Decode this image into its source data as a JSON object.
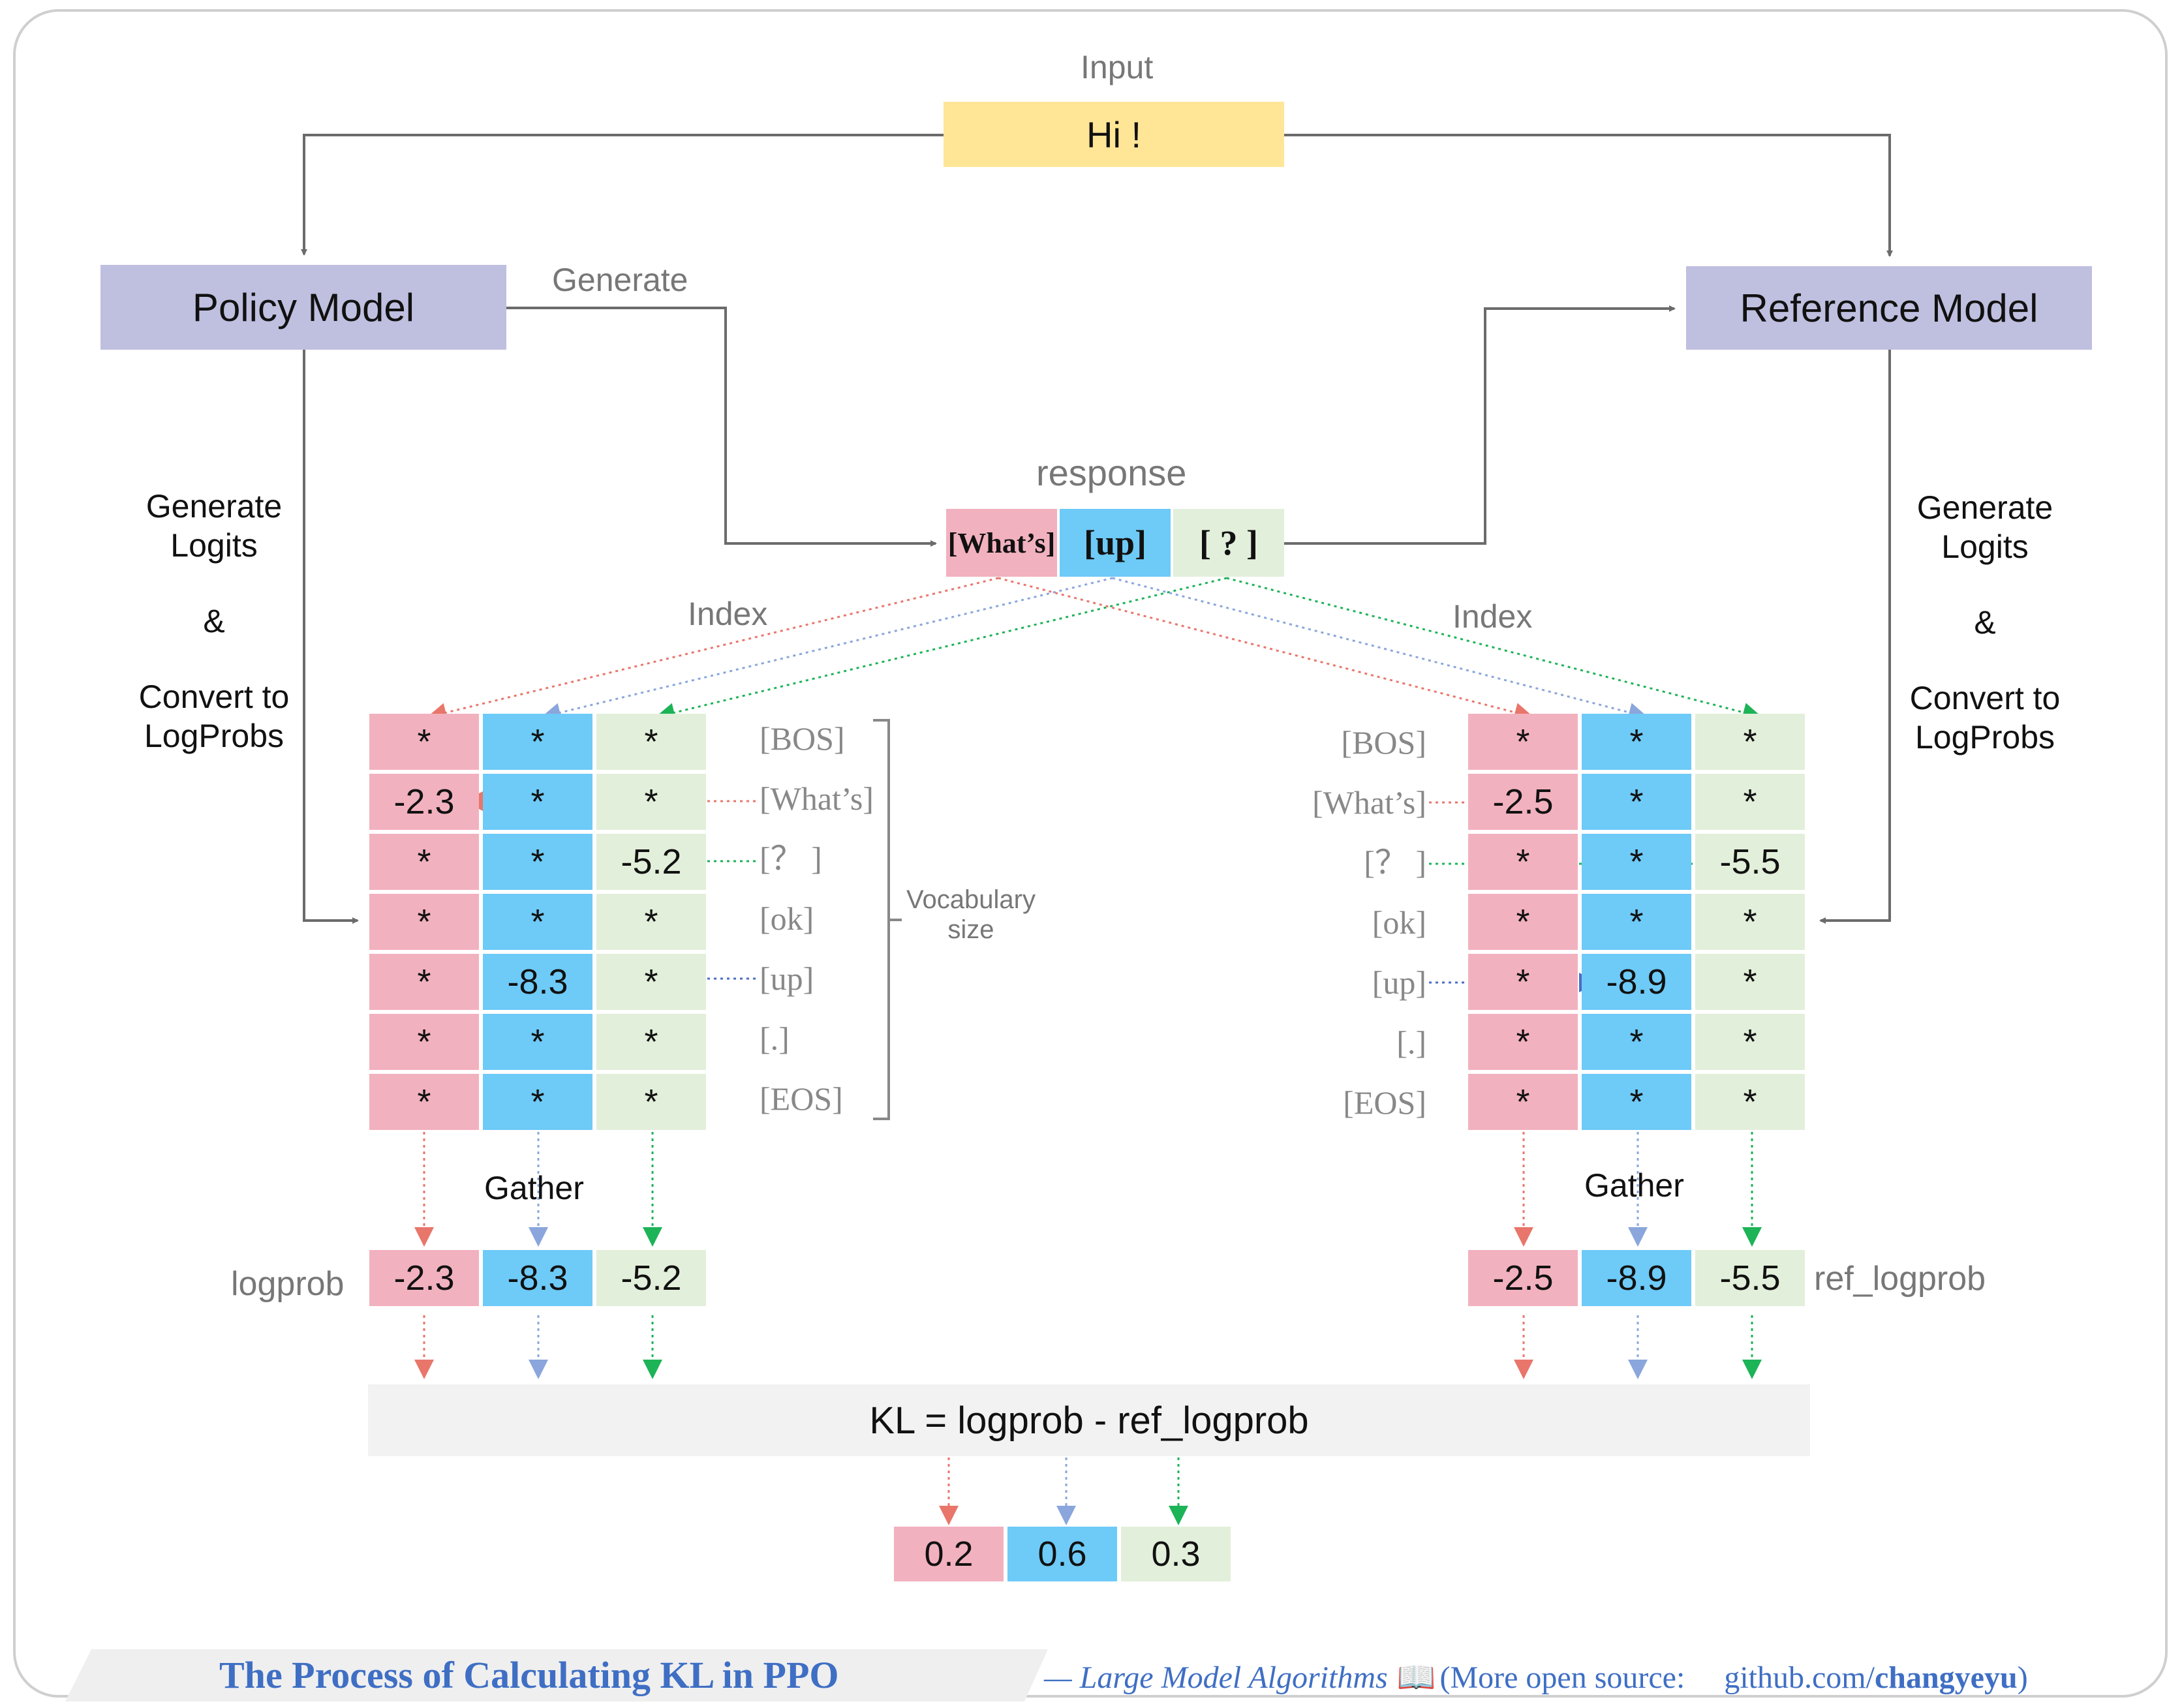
{
  "input": {
    "label": "Input",
    "text": "Hi !"
  },
  "policy_model": "Policy Model",
  "reference_model": "Reference Model",
  "generate_label": "Generate",
  "response": {
    "label": "response",
    "tokens": [
      "[What’s]",
      "[up]",
      "[ ? ]"
    ]
  },
  "left_side_text": {
    "line1": "Generate",
    "line2": "Logits",
    "amp": "&",
    "line3": "Convert to",
    "line4": "LogProbs"
  },
  "right_side_text": {
    "line1": "Generate",
    "line2": "Logits",
    "amp": "&",
    "line3": "Convert to",
    "line4": "LogProbs"
  },
  "index_label": "Index",
  "vocab_tokens": [
    "[BOS]",
    "[What’s]",
    "[？ ]",
    "[ok]",
    "[up]",
    "[.]",
    "[EOS]"
  ],
  "vocab_size_label": {
    "line1": "Vocabulary",
    "line2": "size"
  },
  "policy_matrix": [
    [
      "*",
      "*",
      "*"
    ],
    [
      "-2.3",
      "*",
      "*"
    ],
    [
      "*",
      "*",
      "-5.2"
    ],
    [
      "*",
      "*",
      "*"
    ],
    [
      "*",
      "-8.3",
      "*"
    ],
    [
      "*",
      "*",
      "*"
    ],
    [
      "*",
      "*",
      "*"
    ]
  ],
  "reference_matrix": [
    [
      "*",
      "*",
      "*"
    ],
    [
      "-2.5",
      "*",
      "*"
    ],
    [
      "*",
      "*",
      "-5.5"
    ],
    [
      "*",
      "*",
      "*"
    ],
    [
      "*",
      "-8.9",
      "*"
    ],
    [
      "*",
      "*",
      "*"
    ],
    [
      "*",
      "*",
      "*"
    ]
  ],
  "gather_label": "Gather",
  "logprob": {
    "label": "logprob",
    "values": [
      "-2.3",
      "-8.3",
      "-5.2"
    ]
  },
  "ref_logprob": {
    "label": "ref_logprob",
    "values": [
      "-2.5",
      "-8.9",
      "-5.5"
    ]
  },
  "kl_formula": "KL = logprob - ref_logprob",
  "kl_values": [
    "0.2",
    "0.6",
    "0.3"
  ],
  "footer": {
    "title": "The Process of Calculating KL in PPO",
    "credit": "— Large Model Algorithms",
    "book_icon": "📖",
    "more": "(More open source:",
    "url_prefix": "github.com/",
    "url_user": "changyeyu",
    "close": ")"
  },
  "colors": {
    "red": "#f2b1bf",
    "blue": "#6ecaf7",
    "green": "#e2efda",
    "red_arrow": "#e8766b",
    "blue_arrow": "#7f9fd8",
    "green_arrow": "#1db357",
    "model": "#bfbfe0",
    "input": "#ffe697",
    "kl_bar": "#f2f2f2",
    "footer_title": "#3f6fc4"
  }
}
